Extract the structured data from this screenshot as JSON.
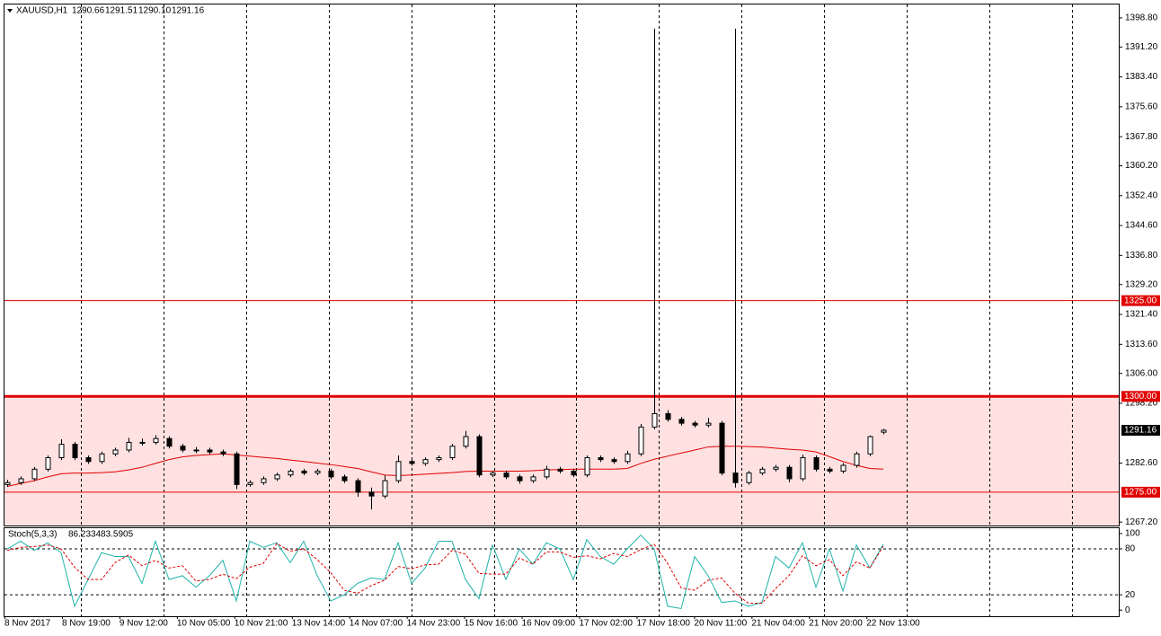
{
  "chart_data": {
    "type": "candlestick",
    "symbol": "XAUUSD,H1",
    "last_bar_labels": [
      "1290.66",
      "1291.51",
      "1290.10",
      "1291.16"
    ],
    "candles": [
      [
        1277,
        1278.2,
        1276.4,
        1277.5
      ],
      [
        1277.5,
        1279.1,
        1276.9,
        1278.5
      ],
      [
        1278.5,
        1281.6,
        1277.9,
        1281
      ],
      [
        1281,
        1284.6,
        1280.4,
        1284
      ],
      [
        1284,
        1288.8,
        1283.4,
        1287.5
      ],
      [
        1287.5,
        1288.1,
        1283.4,
        1284
      ],
      [
        1284,
        1284.6,
        1282.4,
        1283
      ],
      [
        1283,
        1285.6,
        1282.4,
        1285
      ],
      [
        1285,
        1286.6,
        1284.4,
        1286
      ],
      [
        1286,
        1289.2,
        1285.4,
        1288
      ],
      [
        1288,
        1289,
        1287.2,
        1288
      ],
      [
        1288,
        1289.9,
        1287.4,
        1289
      ],
      [
        1289,
        1289.6,
        1286.4,
        1287
      ],
      [
        1287,
        1287.6,
        1285.4,
        1286
      ],
      [
        1286,
        1286.8,
        1285.2,
        1286
      ],
      [
        1286,
        1286.6,
        1284.9,
        1285.5
      ],
      [
        1285.5,
        1286.1,
        1284.4,
        1285
      ],
      [
        1285,
        1285.6,
        1275.8,
        1277
      ],
      [
        1277,
        1278.1,
        1276.4,
        1277.5
      ],
      [
        1277.5,
        1279.1,
        1276.9,
        1278.5
      ],
      [
        1278.5,
        1280.1,
        1277.9,
        1279.5
      ],
      [
        1279.5,
        1281.1,
        1278.9,
        1280.5
      ],
      [
        1280.5,
        1281.1,
        1279.4,
        1280
      ],
      [
        1280,
        1281.1,
        1279.4,
        1280.5
      ],
      [
        1280.5,
        1281.1,
        1278.4,
        1279
      ],
      [
        1279,
        1279.6,
        1277.4,
        1278
      ],
      [
        1278,
        1278.6,
        1273.8,
        1275
      ],
      [
        1275,
        1276.2,
        1270.5,
        1274
      ],
      [
        1274,
        1279.4,
        1273.4,
        1278
      ],
      [
        1278,
        1284.6,
        1277.4,
        1283
      ],
      [
        1283,
        1283.6,
        1281.9,
        1282.5
      ],
      [
        1282.5,
        1284.1,
        1281.9,
        1283.5
      ],
      [
        1283.5,
        1284.6,
        1282.9,
        1284
      ],
      [
        1284,
        1287.6,
        1283.4,
        1287
      ],
      [
        1287,
        1291,
        1286.4,
        1289.5
      ],
      [
        1289.5,
        1290.1,
        1278.9,
        1279.5
      ],
      [
        1279.5,
        1280.6,
        1278.9,
        1280
      ],
      [
        1280,
        1280.6,
        1278.4,
        1279
      ],
      [
        1279,
        1279.6,
        1277.2,
        1278
      ],
      [
        1278,
        1279.6,
        1277.4,
        1279
      ],
      [
        1279,
        1281.9,
        1278.4,
        1281
      ],
      [
        1281,
        1281.6,
        1279.9,
        1280.5
      ],
      [
        1280.5,
        1281.1,
        1278.9,
        1279.5
      ],
      [
        1279.5,
        1284.6,
        1278.9,
        1284
      ],
      [
        1284,
        1284.6,
        1282.9,
        1283.5
      ],
      [
        1283.5,
        1284.1,
        1282.4,
        1283
      ],
      [
        1283,
        1285.8,
        1282.4,
        1285
      ],
      [
        1285,
        1292.8,
        1284.4,
        1292
      ],
      [
        1292,
        1396,
        1291.4,
        1295.5
      ],
      [
        1295.5,
        1296.4,
        1293.4,
        1294
      ],
      [
        1294,
        1294.6,
        1292.4,
        1293
      ],
      [
        1293,
        1293.6,
        1291.9,
        1292.5
      ],
      [
        1292.5,
        1294.4,
        1291.9,
        1293
      ],
      [
        1293,
        1293.6,
        1279.4,
        1280
      ],
      [
        1280,
        1396,
        1276.2,
        1277.5
      ],
      [
        1277.5,
        1280.6,
        1276.9,
        1280
      ],
      [
        1280,
        1281.6,
        1279.4,
        1281
      ],
      [
        1281,
        1282.1,
        1280.4,
        1281.5
      ],
      [
        1281.5,
        1282.1,
        1277.6,
        1278.5
      ],
      [
        1278.5,
        1284.8,
        1277.9,
        1284
      ],
      [
        1284,
        1284.6,
        1280.4,
        1281
      ],
      [
        1281,
        1281.6,
        1279.9,
        1280.5
      ],
      [
        1280.5,
        1282.6,
        1279.9,
        1282
      ],
      [
        1282,
        1285.6,
        1281.4,
        1285
      ],
      [
        1285,
        1289.8,
        1284.4,
        1289.5
      ],
      [
        1290.66,
        1291.51,
        1290.1,
        1291.16
      ]
    ],
    "ma": {
      "color": "#e00000",
      "values": [
        1276.5,
        1277.3,
        1278,
        1279,
        1279.8,
        1280,
        1280,
        1280.1,
        1280.3,
        1280.8,
        1281.5,
        1282.5,
        1283.5,
        1284.2,
        1284.6,
        1284.8,
        1285,
        1284.7,
        1284.4,
        1284.1,
        1283.8,
        1283.4,
        1283,
        1282.6,
        1282.2,
        1281.7,
        1281.2,
        1280.3,
        1279.5,
        1279.3,
        1279.5,
        1279.7,
        1279.9,
        1280.1,
        1280.4,
        1280.5,
        1280.5,
        1280.5,
        1280.5,
        1280.6,
        1280.8,
        1280.9,
        1281,
        1281,
        1281,
        1281,
        1281.2,
        1282.5,
        1283.6,
        1284.4,
        1285.2,
        1286,
        1286.8,
        1287,
        1287,
        1286.9,
        1286.8,
        1286.5,
        1286.2,
        1286,
        1285.5,
        1284.3,
        1283,
        1282,
        1281.2,
        1281
      ]
    },
    "levels": [
      {
        "value": 1325,
        "label": "1325.00",
        "color": "#e00000"
      },
      {
        "value": 1300,
        "label": "1300.00",
        "color": "#e00000",
        "zone": true
      },
      {
        "value": 1275,
        "label": "1275.00",
        "color": "#e00000"
      }
    ],
    "zone_color": "#ffe1e1",
    "ylim": [
      1266.3,
      1402.3
    ],
    "yticks": [
      {
        "value": 1398.8,
        "label": "1398.80"
      },
      {
        "value": 1391.2,
        "label": "1391.20"
      },
      {
        "value": 1383.4,
        "label": "1383.40"
      },
      {
        "value": 1375.6,
        "label": "1375.60"
      },
      {
        "value": 1367.8,
        "label": "1367.80"
      },
      {
        "value": 1360.2,
        "label": "1360.20"
      },
      {
        "value": 1352.4,
        "label": "1352.40"
      },
      {
        "value": 1344.6,
        "label": "1344.60"
      },
      {
        "value": 1336.8,
        "label": "1336.80"
      },
      {
        "value": 1329.2,
        "label": "1329.20"
      },
      {
        "value": 1321.4,
        "label": "1321.40"
      },
      {
        "value": 1313.6,
        "label": "1313.60"
      },
      {
        "value": 1306,
        "label": "1306.00"
      },
      {
        "value": 1298.2,
        "label": "1298.20"
      },
      {
        "value": 1282.6,
        "label": "1282.60"
      },
      {
        "value": 1267.2,
        "label": "1267.20"
      }
    ],
    "x_labels": [
      "8 Nov 2017",
      "8 Nov 19:00",
      "9 Nov 12:00",
      "10 Nov 05:00",
      "10 Nov 21:00",
      "13 Nov 14:00",
      "14 Nov 07:00",
      "14 Nov 23:00",
      "15 Nov 16:00",
      "16 Nov 09:00",
      "17 Nov 02:00",
      "17 Nov 18:00",
      "20 Nov 11:00",
      "21 Nov 04:00",
      "21 Nov 20:00",
      "22 Nov 13:00"
    ],
    "stoch": {
      "name": "Stoch(5,3,3)",
      "ylim": [
        -8,
        107
      ],
      "yticks": [
        100,
        80,
        20,
        0
      ],
      "levels": [
        80,
        20
      ],
      "main": {
        "color": "#20b2aa",
        "values": [
          80,
          90,
          78,
          88,
          75,
          5,
          40,
          75,
          70,
          70,
          35,
          90,
          40,
          45,
          30,
          45,
          65,
          12,
          90,
          82,
          88,
          62,
          90,
          45,
          12,
          20,
          35,
          42,
          40,
          88,
          35,
          55,
          90,
          90,
          40,
          15,
          85,
          40,
          80,
          60,
          88,
          80,
          40,
          92,
          70,
          60,
          80,
          98,
          80,
          5,
          2,
          70,
          45,
          10,
          12,
          5,
          10,
          70,
          55,
          88,
          30,
          80,
          25,
          85,
          55,
          86.2334
        ]
      },
      "signal": {
        "color": "#e00000",
        "values": [
          78,
          82,
          83,
          85,
          80,
          56,
          40,
          40,
          62,
          72,
          58,
          65,
          55,
          58,
          38,
          40,
          47,
          41,
          56,
          61,
          87,
          77,
          80,
          66,
          49,
          26,
          22,
          32,
          39,
          57,
          54,
          59,
          60,
          78,
          73,
          48,
          47,
          47,
          68,
          60,
          76,
          76,
          69,
          71,
          67,
          74,
          70,
          79,
          86,
          61,
          29,
          26,
          39,
          42,
          22,
          9,
          9,
          28,
          45,
          71,
          58,
          66,
          45,
          63,
          55,
          83.5905
        ]
      }
    }
  }
}
